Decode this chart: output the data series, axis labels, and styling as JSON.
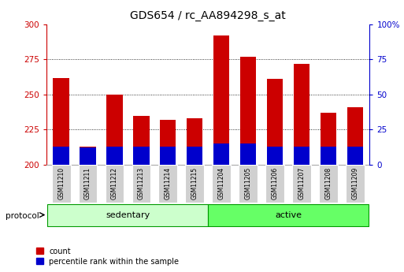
{
  "title": "GDS654 / rc_AA894298_s_at",
  "samples": [
    "GSM11210",
    "GSM11211",
    "GSM11212",
    "GSM11213",
    "GSM11214",
    "GSM11215",
    "GSM11204",
    "GSM11205",
    "GSM11206",
    "GSM11207",
    "GSM11208",
    "GSM11209"
  ],
  "group_labels": [
    "sedentary",
    "active"
  ],
  "count_values": [
    262,
    213,
    250,
    235,
    232,
    233,
    292,
    277,
    261,
    272,
    237,
    241
  ],
  "percentile_values": [
    13,
    12,
    13,
    13,
    13,
    13,
    15,
    15,
    13,
    13,
    13,
    13
  ],
  "base": 200,
  "ylim_left": [
    200,
    300
  ],
  "ylim_right": [
    0,
    100
  ],
  "yticks_left": [
    200,
    225,
    250,
    275,
    300
  ],
  "yticks_right": [
    0,
    25,
    50,
    75,
    100
  ],
  "ytick_right_labels": [
    "0",
    "25",
    "50",
    "75",
    "100%"
  ],
  "red_color": "#cc0000",
  "blue_color": "#0000cc",
  "sedentary_color": "#ccffcc",
  "active_color": "#66ff66",
  "group_border_color": "#009900",
  "bar_bg_color": "#d0d0d0",
  "title_fontsize": 10,
  "tick_fontsize": 7.5,
  "bar_width": 0.6,
  "protocol_label": "protocol",
  "legend_count": "count",
  "legend_percentile": "percentile rank within the sample",
  "n_sedentary": 6,
  "n_active": 6
}
